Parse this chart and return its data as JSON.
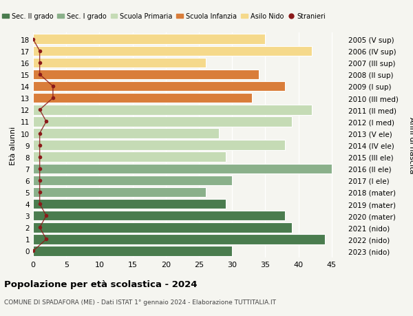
{
  "ages": [
    18,
    17,
    16,
    15,
    14,
    13,
    12,
    11,
    10,
    9,
    8,
    7,
    6,
    5,
    4,
    3,
    2,
    1,
    0
  ],
  "years": [
    "2005 (V sup)",
    "2006 (IV sup)",
    "2007 (III sup)",
    "2008 (II sup)",
    "2009 (I sup)",
    "2010 (III med)",
    "2011 (II med)",
    "2012 (I med)",
    "2013 (V ele)",
    "2014 (IV ele)",
    "2015 (III ele)",
    "2016 (II ele)",
    "2017 (I ele)",
    "2018 (mater)",
    "2019 (mater)",
    "2020 (mater)",
    "2021 (nido)",
    "2022 (nido)",
    "2023 (nido)"
  ],
  "values": [
    30,
    44,
    39,
    38,
    29,
    26,
    30,
    45,
    29,
    38,
    28,
    39,
    42,
    33,
    38,
    34,
    26,
    42,
    35
  ],
  "stranieri": [
    0,
    2,
    1,
    2,
    1,
    1,
    1,
    1,
    1,
    1,
    1,
    2,
    1,
    3,
    3,
    1,
    1,
    1,
    0
  ],
  "bar_colors": [
    "#4a7c4e",
    "#4a7c4e",
    "#4a7c4e",
    "#4a7c4e",
    "#4a7c4e",
    "#8ab08a",
    "#8ab08a",
    "#8ab08a",
    "#c5dbb5",
    "#c5dbb5",
    "#c5dbb5",
    "#c5dbb5",
    "#c5dbb5",
    "#d97d3a",
    "#d97d3a",
    "#d97d3a",
    "#f5d98b",
    "#f5d98b",
    "#f5d98b"
  ],
  "legend_labels": [
    "Sec. II grado",
    "Sec. I grado",
    "Scuola Primaria",
    "Scuola Infanzia",
    "Asilo Nido",
    "Stranieri"
  ],
  "legend_colors": [
    "#4a7c4e",
    "#8ab08a",
    "#c5dbb5",
    "#d97d3a",
    "#f5d98b",
    "#8b1a1a"
  ],
  "stranieri_color": "#8b1a1a",
  "title": "Popolazione per età scolastica - 2024",
  "subtitle": "COMUNE DI SPADAFORA (ME) - Dati ISTAT 1° gennaio 2024 - Elaborazione TUTTITALIA.IT",
  "ylabel_left": "Età alunni",
  "ylabel_right": "Anni di nascita",
  "xlim": [
    0,
    47
  ],
  "xticks": [
    0,
    5,
    10,
    15,
    20,
    25,
    30,
    35,
    40,
    45
  ],
  "bg_color": "#f5f5f0"
}
